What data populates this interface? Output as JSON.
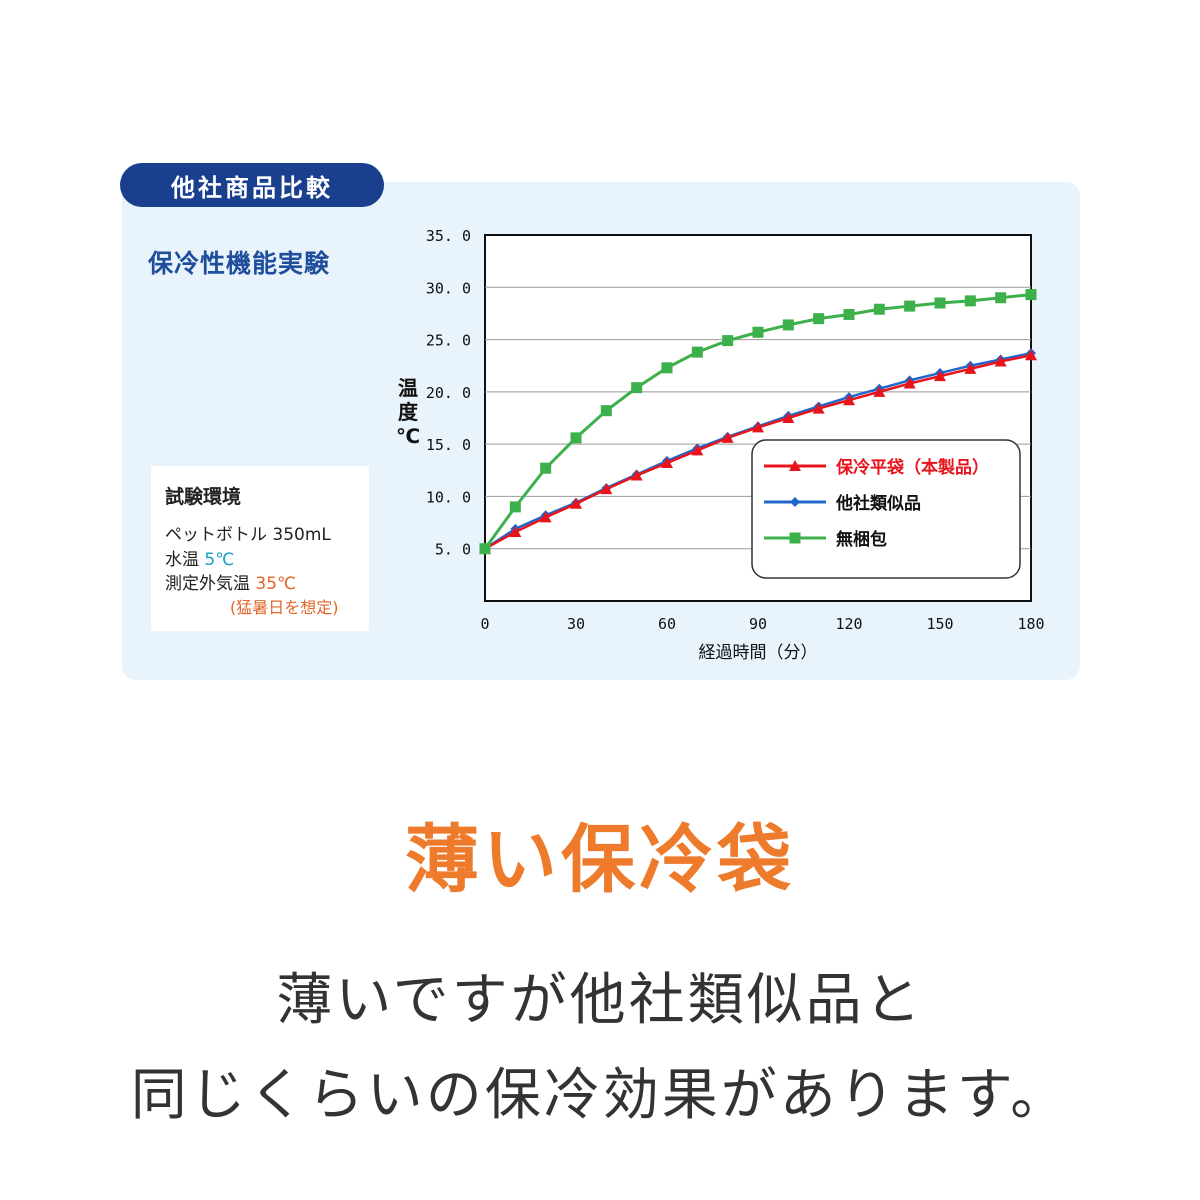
{
  "tab_label": "他社商品比較",
  "subtitle": "保冷性機能実験",
  "environment": {
    "title": "試験環境",
    "bottle": "ペットボトル 350mL",
    "water_temp_label": "水温",
    "water_temp_value": "5℃",
    "outside_temp_label": "測定外気温",
    "outside_temp_value": "35℃",
    "outside_temp_note": "(猛暑日を想定)"
  },
  "headline": "薄い保冷袋",
  "body_lines": [
    "薄いですが他社類似品と",
    "同じくらいの保冷効果があります。"
  ],
  "colors": {
    "red": "#e8141c",
    "blue": "#2067c9",
    "green": "#3cb04a",
    "tab": "#1a3f8f",
    "orange": "#ee7a2c"
  },
  "chart_data": {
    "type": "line",
    "xlabel": "経過時間（分）",
    "ylabel": "温度℃",
    "x": [
      0,
      10,
      20,
      30,
      40,
      50,
      60,
      70,
      80,
      90,
      100,
      110,
      120,
      130,
      140,
      150,
      160,
      170,
      180
    ],
    "xticks": [
      "0",
      "30",
      "60",
      "90",
      "120",
      "150",
      "180"
    ],
    "yticks": [
      "5. 0",
      "10. 0",
      "15. 0",
      "20. 0",
      "25. 0",
      "30. 0",
      "35. 0"
    ],
    "xlim": [
      0,
      180
    ],
    "ylim": [
      0,
      35
    ],
    "grid": true,
    "legend_position": "bottom-right",
    "series": [
      {
        "name": "保冷平袋（本製品）",
        "marker": "triangle",
        "color": "#e8141c",
        "values": [
          5.0,
          6.6,
          8.0,
          9.3,
          10.7,
          12.0,
          13.2,
          14.4,
          15.6,
          16.6,
          17.5,
          18.4,
          19.2,
          20.0,
          20.8,
          21.5,
          22.2,
          22.9,
          23.5
        ]
      },
      {
        "name": "他社類似品",
        "marker": "diamond",
        "color": "#2067c9",
        "values": [
          5.0,
          6.9,
          8.2,
          9.4,
          10.8,
          12.1,
          13.4,
          14.6,
          15.7,
          16.7,
          17.7,
          18.6,
          19.5,
          20.3,
          21.1,
          21.8,
          22.5,
          23.1,
          23.7
        ]
      },
      {
        "name": "無梱包",
        "marker": "square",
        "color": "#3cb04a",
        "values": [
          5.0,
          9.0,
          12.7,
          15.6,
          18.2,
          20.4,
          22.3,
          23.8,
          24.9,
          25.7,
          26.4,
          27.0,
          27.4,
          27.9,
          28.2,
          28.5,
          28.7,
          29.0,
          29.3
        ]
      }
    ]
  }
}
